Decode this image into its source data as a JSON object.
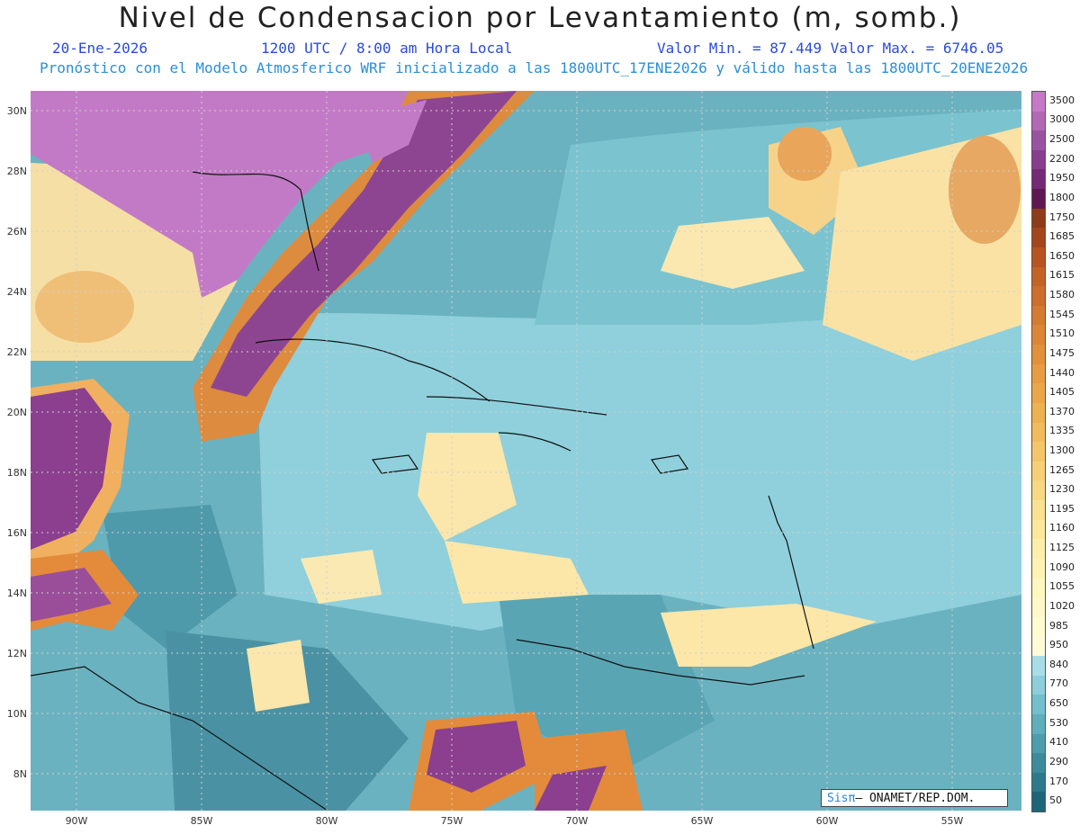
{
  "header": {
    "title": "Nivel de Condensacion por Levantamiento (m, somb.)",
    "date": "20-Ene-2026",
    "time": "1200 UTC / 8:00 am Hora Local",
    "min_max": "Valor Min. = 87.449  Valor Max. = 6746.05",
    "forecast_info": "Pronóstico con el Modelo Atmosferico WRF inicializado a las 1800UTC_17ENE2026 y válido hasta las  1800UTC_20ENE2026"
  },
  "axes": {
    "lat_labels": [
      "30N",
      "28N",
      "26N",
      "24N",
      "22N",
      "20N",
      "18N",
      "16N",
      "14N",
      "12N",
      "10N",
      "8N"
    ],
    "lon_labels": [
      "90W",
      "85W",
      "80W",
      "75W",
      "70W",
      "65W",
      "60W",
      "55W"
    ]
  },
  "colorbar": {
    "labels": [
      "3500",
      "3000",
      "2500",
      "2200",
      "1950",
      "1800",
      "1750",
      "1685",
      "1650",
      "1615",
      "1580",
      "1545",
      "1510",
      "1475",
      "1440",
      "1405",
      "1370",
      "1335",
      "1300",
      "1265",
      "1230",
      "1195",
      "1160",
      "1125",
      "1090",
      "1055",
      "1020",
      "985",
      "950",
      "840",
      "770",
      "650",
      "530",
      "410",
      "290",
      "170",
      "50"
    ],
    "colors": [
      "#c779c6",
      "#b268b3",
      "#9a53a0",
      "#873e8c",
      "#752a78",
      "#5e1851",
      "#8e3b1a",
      "#a3461c",
      "#b8541f",
      "#c46326",
      "#cd6f2b",
      "#d57a31",
      "#dd8537",
      "#e3903c",
      "#e89b42",
      "#ec a64a",
      "#efb052",
      "#f2bb5d",
      "#f5c669",
      "#f7cf77",
      "#f9d884",
      "#fbe091",
      "#fce79d",
      "#fdeeaa",
      "#fef3b4",
      "#fef7be",
      "#fefac8",
      "#fffcd2",
      "#fffbd8",
      "#a8dde8",
      "#8ccfdb",
      "#72bfcd",
      "#5eaebd",
      "#4c9dad",
      "#3b8b9d",
      "#2b798c",
      "#1c667a"
    ]
  },
  "credit": {
    "logo": "Sisπ",
    "text": "– ONAMET/REP.DOM."
  }
}
